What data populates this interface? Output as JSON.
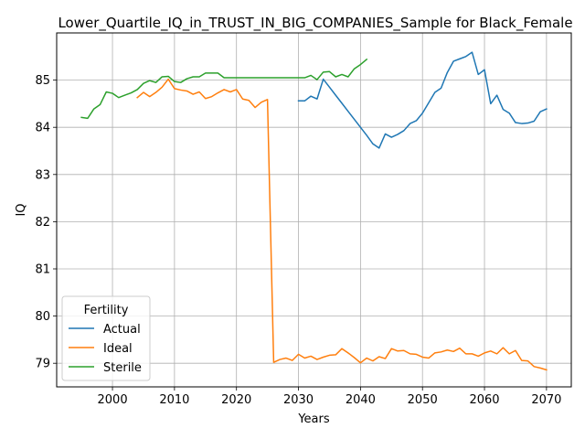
{
  "chart_data": {
    "type": "line",
    "title": "Lower_Quartile_IQ_in_TRUST_IN_BIG_COMPANIES_Sample for Black_Female",
    "xlabel": "Years",
    "ylabel": "IQ",
    "xlim": [
      1991,
      2074
    ],
    "ylim": [
      78.5,
      86.0
    ],
    "xticks": [
      2000,
      2010,
      2020,
      2030,
      2040,
      2050,
      2060,
      2070
    ],
    "yticks": [
      79,
      80,
      81,
      82,
      83,
      84,
      85
    ],
    "grid": true,
    "legend": {
      "title": "Fertility",
      "placement": "lower-left"
    },
    "series": [
      {
        "name": "Actual",
        "color": "#1f77b4",
        "x": [
          2030,
          2031,
          2032,
          2033,
          2034,
          2035,
          2036,
          2037,
          2038,
          2039,
          2040,
          2041,
          2042,
          2043,
          2044,
          2045,
          2046,
          2047,
          2048,
          2049,
          2050,
          2051,
          2052,
          2053,
          2054,
          2055,
          2056,
          2057,
          2058,
          2059,
          2060,
          2061,
          2062,
          2063,
          2064,
          2065,
          2066,
          2067,
          2068,
          2069,
          2070
        ],
        "y": [
          84.56,
          84.56,
          84.66,
          84.6,
          85.02,
          84.85,
          84.68,
          84.51,
          84.34,
          84.17,
          84.0,
          83.83,
          83.65,
          83.56,
          83.86,
          83.79,
          83.85,
          83.93,
          84.08,
          84.14,
          84.3,
          84.52,
          84.74,
          84.83,
          85.16,
          85.4,
          85.45,
          85.5,
          85.59,
          85.12,
          85.22,
          84.5,
          84.68,
          84.38,
          84.3,
          84.1,
          84.08,
          84.09,
          84.13,
          84.33,
          84.39
        ]
      },
      {
        "name": "Ideal",
        "color": "#ff7f0e",
        "x": [
          2004,
          2005,
          2006,
          2007,
          2008,
          2009,
          2010,
          2011,
          2012,
          2013,
          2014,
          2015,
          2016,
          2017,
          2018,
          2019,
          2020,
          2021,
          2022,
          2023,
          2024,
          2025,
          2026,
          2027,
          2028,
          2029,
          2030,
          2031,
          2032,
          2033,
          2034,
          2035,
          2036,
          2037,
          2038,
          2039,
          2040,
          2041,
          2042,
          2043,
          2044,
          2045,
          2046,
          2047,
          2048,
          2049,
          2050,
          2051,
          2052,
          2053,
          2054,
          2055,
          2056,
          2057,
          2058,
          2059,
          2060,
          2061,
          2062,
          2063,
          2064,
          2065,
          2066,
          2067,
          2068,
          2069,
          2070
        ],
        "y": [
          84.63,
          84.74,
          84.65,
          84.74,
          84.85,
          85.02,
          84.82,
          84.79,
          84.77,
          84.7,
          84.75,
          84.61,
          84.65,
          84.73,
          84.8,
          84.75,
          84.8,
          84.6,
          84.57,
          84.42,
          84.53,
          84.59,
          79.02,
          79.08,
          79.11,
          79.06,
          79.19,
          79.11,
          79.15,
          79.08,
          79.13,
          79.17,
          79.18,
          79.31,
          79.22,
          79.12,
          79.01,
          79.11,
          79.05,
          79.14,
          79.1,
          79.31,
          79.26,
          79.27,
          79.2,
          79.19,
          79.13,
          79.11,
          79.22,
          79.24,
          79.28,
          79.25,
          79.32,
          79.2,
          79.2,
          79.15,
          79.22,
          79.26,
          79.2,
          79.33,
          79.2,
          79.27,
          79.06,
          79.05,
          78.93,
          78.9,
          78.86
        ]
      },
      {
        "name": "Sterile",
        "color": "#2ca02c",
        "x": [
          1995,
          1996,
          1997,
          1998,
          1999,
          2000,
          2001,
          2002,
          2003,
          2004,
          2005,
          2006,
          2007,
          2008,
          2009,
          2010,
          2011,
          2012,
          2013,
          2014,
          2015,
          2016,
          2017,
          2018,
          2019,
          2020,
          2021,
          2022,
          2023,
          2024,
          2025,
          2026,
          2027,
          2028,
          2029,
          2030,
          2031,
          2032,
          2033,
          2034,
          2035,
          2036,
          2037,
          2038,
          2039,
          2040,
          2041
        ],
        "y": [
          84.21,
          84.19,
          84.39,
          84.48,
          84.75,
          84.72,
          84.63,
          84.68,
          84.73,
          84.8,
          84.93,
          84.99,
          84.95,
          85.07,
          85.08,
          84.97,
          84.95,
          85.03,
          85.07,
          85.07,
          85.15,
          85.15,
          85.15,
          85.05,
          85.05,
          85.05,
          85.05,
          85.05,
          85.05,
          85.05,
          85.05,
          85.05,
          85.05,
          85.05,
          85.05,
          85.05,
          85.05,
          85.1,
          85.01,
          85.17,
          85.18,
          85.07,
          85.12,
          85.07,
          85.24,
          85.33,
          85.44
        ]
      }
    ]
  }
}
